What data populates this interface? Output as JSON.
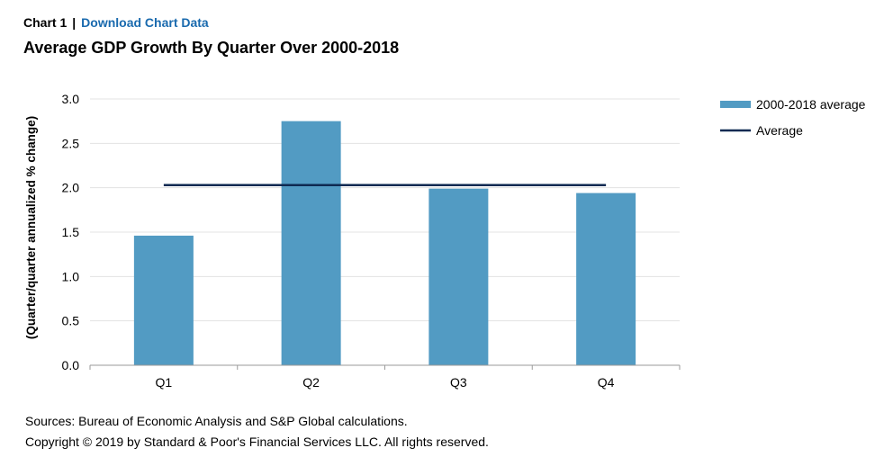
{
  "header": {
    "chart_label": "Chart 1",
    "separator": "|",
    "download_link": "Download Chart Data"
  },
  "chart_data": {
    "type": "bar",
    "title": "Average GDP Growth By Quarter Over 2000-2018",
    "xlabel": "",
    "ylabel": "(Quarter/quarter annualized % change)",
    "categories": [
      "Q1",
      "Q2",
      "Q3",
      "Q4"
    ],
    "series": [
      {
        "name": "2000-2018 average",
        "type": "bar",
        "color": "#529bc3",
        "values": [
          1.46,
          2.75,
          1.99,
          1.94
        ]
      },
      {
        "name": "Average",
        "type": "line",
        "color": "#0e2a52",
        "values": [
          2.03,
          2.03,
          2.03,
          2.03
        ]
      }
    ],
    "ylim": [
      0,
      3.0
    ],
    "yticks": [
      "0.0",
      "0.5",
      "1.0",
      "1.5",
      "2.0",
      "2.5",
      "3.0"
    ],
    "grid": true,
    "legend_position": "top-right"
  },
  "footer": {
    "sources": "Sources: Bureau of Economic Analysis and S&P Global calculations.",
    "copyright": "Copyright © 2019 by Standard & Poor's Financial Services LLC. All rights reserved."
  }
}
